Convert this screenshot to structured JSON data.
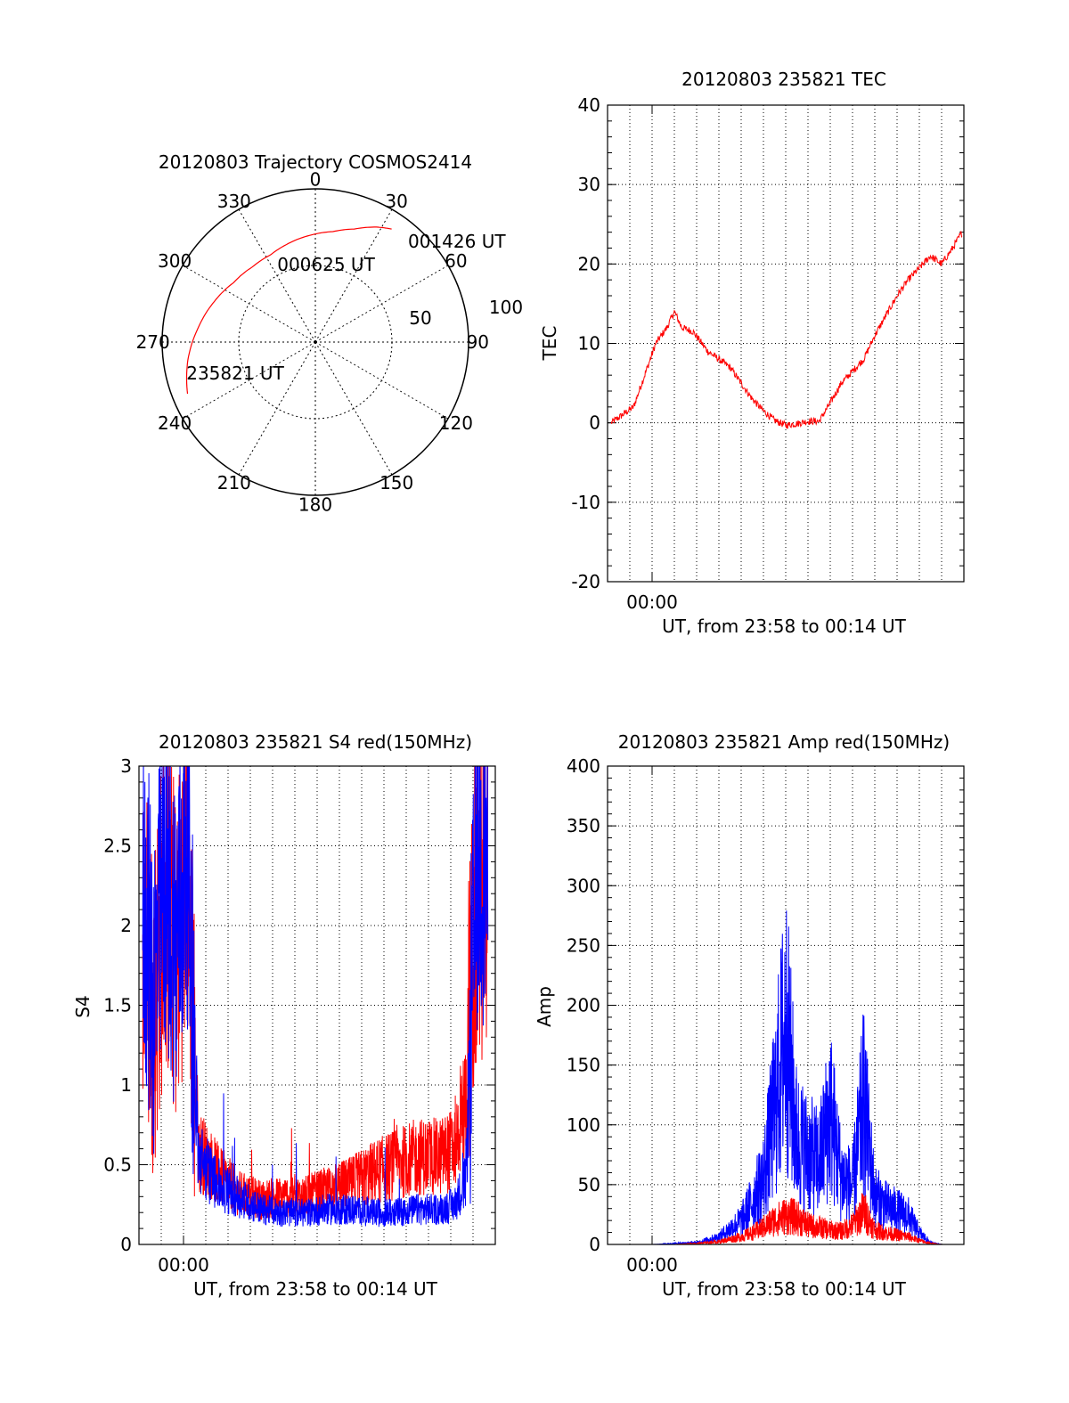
{
  "chart_data": [
    {
      "type": "polar",
      "title": "20120803 Trajectory COSMOS2414",
      "azimuth_labels": [
        "0",
        "30",
        "60",
        "90",
        "120",
        "150",
        "180",
        "210",
        "240",
        "270",
        "300",
        "330"
      ],
      "ring_labels": [
        "50",
        "100"
      ],
      "series": [
        {
          "color": "#ff0000",
          "points": [
            {
              "azimuth": 248,
              "distance": 90
            },
            {
              "azimuth": 262,
              "distance": 84
            },
            {
              "azimuth": 277,
              "distance": 77
            },
            {
              "azimuth": 292,
              "distance": 71
            },
            {
              "azimuth": 306,
              "distance": 66
            },
            {
              "azimuth": 320,
              "distance": 64
            },
            {
              "azimuth": 333,
              "distance": 64
            },
            {
              "azimuth": 346,
              "distance": 67
            },
            {
              "azimuth": 358,
              "distance": 70
            },
            {
              "azimuth": 9,
              "distance": 73
            },
            {
              "azimuth": 19,
              "distance": 78
            },
            {
              "azimuth": 28,
              "distance": 85
            },
            {
              "azimuth": 34,
              "distance": 89
            }
          ]
        }
      ],
      "annotations": [
        {
          "text": "001426 UT",
          "azimuth": 40,
          "distance": 96
        },
        {
          "text": "000625 UT",
          "azimuth": 353,
          "distance": 50
        },
        {
          "text": "235821 UT",
          "azimuth": 252,
          "distance": 80
        }
      ]
    },
    {
      "type": "line",
      "title": "20120803 235821 TEC",
      "xlabel": "UT, from 23:58 to 00:14 UT",
      "ylabel": "TEC",
      "xlim": [
        "23:58",
        "00:14"
      ],
      "ylim": [
        -20,
        40
      ],
      "yticks": [
        -20,
        -10,
        0,
        10,
        20,
        30,
        40
      ],
      "xtick_labels": [
        "00:00"
      ],
      "grid": true,
      "series": [
        {
          "color": "#ff0000",
          "x": [
            "23:58:10",
            "23:58:40",
            "23:59:10",
            "23:59:40",
            "00:00:10",
            "00:00:40",
            "00:01:00",
            "00:01:20",
            "00:01:50",
            "00:02:30",
            "00:03:00",
            "00:03:30",
            "00:04:00",
            "00:04:30",
            "00:05:00",
            "00:05:30",
            "00:06:00",
            "00:06:30",
            "00:07:00",
            "00:07:30",
            "00:08:00",
            "00:08:30",
            "00:09:00",
            "00:09:30",
            "00:10:00",
            "00:10:30",
            "00:11:00",
            "00:11:30",
            "00:12:00",
            "00:12:30",
            "00:13:00",
            "00:13:30",
            "00:13:55"
          ],
          "values": [
            0,
            1,
            2,
            6,
            10,
            12,
            14,
            12,
            11.5,
            9,
            8,
            7,
            5,
            3,
            1.5,
            0.3,
            -0.3,
            -0.1,
            0.2,
            0.2,
            2.5,
            5,
            6.5,
            8,
            11,
            13.5,
            16,
            18,
            19.5,
            21,
            20,
            22,
            24
          ]
        }
      ]
    },
    {
      "type": "line",
      "title": "20120803 235821 S4 red(150MHz)",
      "xlabel": "UT, from 23:58 to 00:14 UT",
      "ylabel": "S4",
      "xlim": [
        "23:58",
        "00:14"
      ],
      "ylim": [
        0,
        3
      ],
      "yticks": [
        0,
        0.5,
        1,
        1.5,
        2,
        2.5,
        3
      ],
      "xtick_labels": [
        "00:00"
      ],
      "grid": true,
      "series": [
        {
          "color": "#ff0000",
          "x": [
            "23:58:10",
            "23:58:40",
            "23:59:10",
            "23:59:40",
            "00:00:10",
            "00:00:40",
            "00:01:30",
            "00:02:30",
            "00:03:30",
            "00:04:30",
            "00:05:30",
            "00:06:30",
            "00:07:30",
            "00:08:30",
            "00:09:30",
            "00:10:30",
            "00:11:30",
            "00:12:10",
            "00:12:40",
            "00:13:10",
            "00:13:40"
          ],
          "values": [
            2.0,
            1.5,
            2.2,
            1.8,
            2.4,
            0.6,
            0.45,
            0.32,
            0.28,
            0.3,
            0.3,
            0.34,
            0.38,
            0.45,
            0.5,
            0.55,
            0.55,
            0.6,
            0.9,
            2.2,
            2.3
          ]
        },
        {
          "color": "#0000ff",
          "x": [
            "23:58:10",
            "23:58:40",
            "23:59:10",
            "23:59:40",
            "00:00:10",
            "00:00:40",
            "00:01:30",
            "00:02:30",
            "00:03:30",
            "00:04:30",
            "00:05:30",
            "00:06:30",
            "00:07:30",
            "00:08:30",
            "00:09:30",
            "00:10:30",
            "00:11:30",
            "00:12:10",
            "00:12:40",
            "00:13:10",
            "00:13:40"
          ],
          "values": [
            2.2,
            1.6,
            2.3,
            1.9,
            2.5,
            0.55,
            0.38,
            0.3,
            0.22,
            0.2,
            0.2,
            0.22,
            0.22,
            0.2,
            0.2,
            0.22,
            0.22,
            0.25,
            0.4,
            2.4,
            2.5
          ]
        }
      ]
    },
    {
      "type": "line",
      "title": "20120803 235821 Amp red(150MHz)",
      "xlabel": "UT, from 23:58 to 00:14 UT",
      "ylabel": "Amp",
      "xlim": [
        "23:58",
        "00:14"
      ],
      "ylim": [
        0,
        400
      ],
      "yticks": [
        0,
        50,
        100,
        150,
        200,
        250,
        300,
        350,
        400
      ],
      "xtick_labels": [
        "00:00"
      ],
      "grid": true,
      "series": [
        {
          "color": "#0000ff",
          "x": [
            "23:58:00",
            "23:59:00",
            "00:00:00",
            "00:01:00",
            "00:02:00",
            "00:03:00",
            "00:04:00",
            "00:04:30",
            "00:05:00",
            "00:05:30",
            "00:06:00",
            "00:06:30",
            "00:07:00",
            "00:07:30",
            "00:08:00",
            "00:08:30",
            "00:09:00",
            "00:09:30",
            "00:10:00",
            "00:10:30",
            "00:11:00",
            "00:11:30",
            "00:12:00",
            "00:12:30",
            "00:13:00",
            "00:14:00"
          ],
          "values": [
            0,
            0,
            0,
            1,
            2,
            8,
            25,
            45,
            70,
            140,
            230,
            110,
            95,
            85,
            140,
            70,
            60,
            150,
            50,
            40,
            35,
            30,
            12,
            2,
            0,
            0
          ]
        },
        {
          "color": "#ff0000",
          "x": [
            "23:58:00",
            "23:59:00",
            "00:00:00",
            "00:01:00",
            "00:02:00",
            "00:03:00",
            "00:04:00",
            "00:04:30",
            "00:05:00",
            "00:05:30",
            "00:06:00",
            "00:06:30",
            "00:07:00",
            "00:07:30",
            "00:08:00",
            "00:08:30",
            "00:09:00",
            "00:09:30",
            "00:10:00",
            "00:10:30",
            "00:11:00",
            "00:11:30",
            "00:12:00",
            "00:12:30",
            "00:13:00",
            "00:14:00"
          ],
          "values": [
            0,
            0,
            0,
            0,
            1,
            3,
            8,
            12,
            18,
            25,
            30,
            28,
            20,
            18,
            15,
            14,
            20,
            35,
            15,
            12,
            10,
            8,
            4,
            1,
            0,
            0
          ]
        }
      ]
    }
  ]
}
